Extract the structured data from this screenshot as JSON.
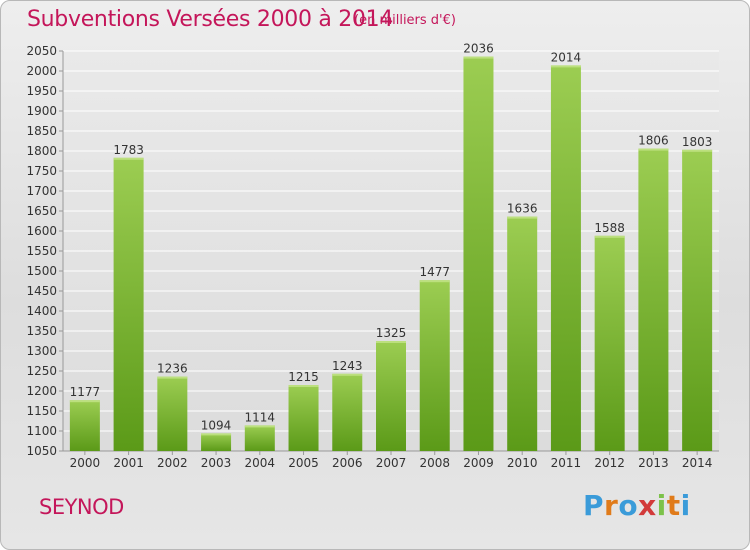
{
  "header": {
    "title": "Subventions Versées 2000 à 2014",
    "unit": "(en milliers d'€)"
  },
  "footer": {
    "commune": "SEYNOD",
    "logo_text": "Proxiti",
    "logo_letters": [
      "P",
      "r",
      "o",
      "x",
      "i",
      "t",
      "i"
    ],
    "logo_colors": [
      "#3a9bd9",
      "#e07b1a",
      "#3a9bd9",
      "#d23a3a",
      "#7cc24a",
      "#e07b1a",
      "#3a9bd9"
    ]
  },
  "chart_data": {
    "type": "bar",
    "title": "Subventions Versées 2000 à 2014",
    "categories": [
      "2000",
      "2001",
      "2002",
      "2003",
      "2004",
      "2005",
      "2006",
      "2007",
      "2008",
      "2009",
      "2010",
      "2011",
      "2012",
      "2013",
      "2014"
    ],
    "values": [
      1177,
      1783,
      1236,
      1094,
      1114,
      1215,
      1243,
      1325,
      1477,
      2036,
      1636,
      2014,
      1588,
      1806,
      1803
    ],
    "ylim": [
      1050,
      2050
    ],
    "ytick_step": 50,
    "grid": true,
    "bar_color_top": "#9ccd52",
    "bar_color_bottom": "#5b9a18"
  }
}
